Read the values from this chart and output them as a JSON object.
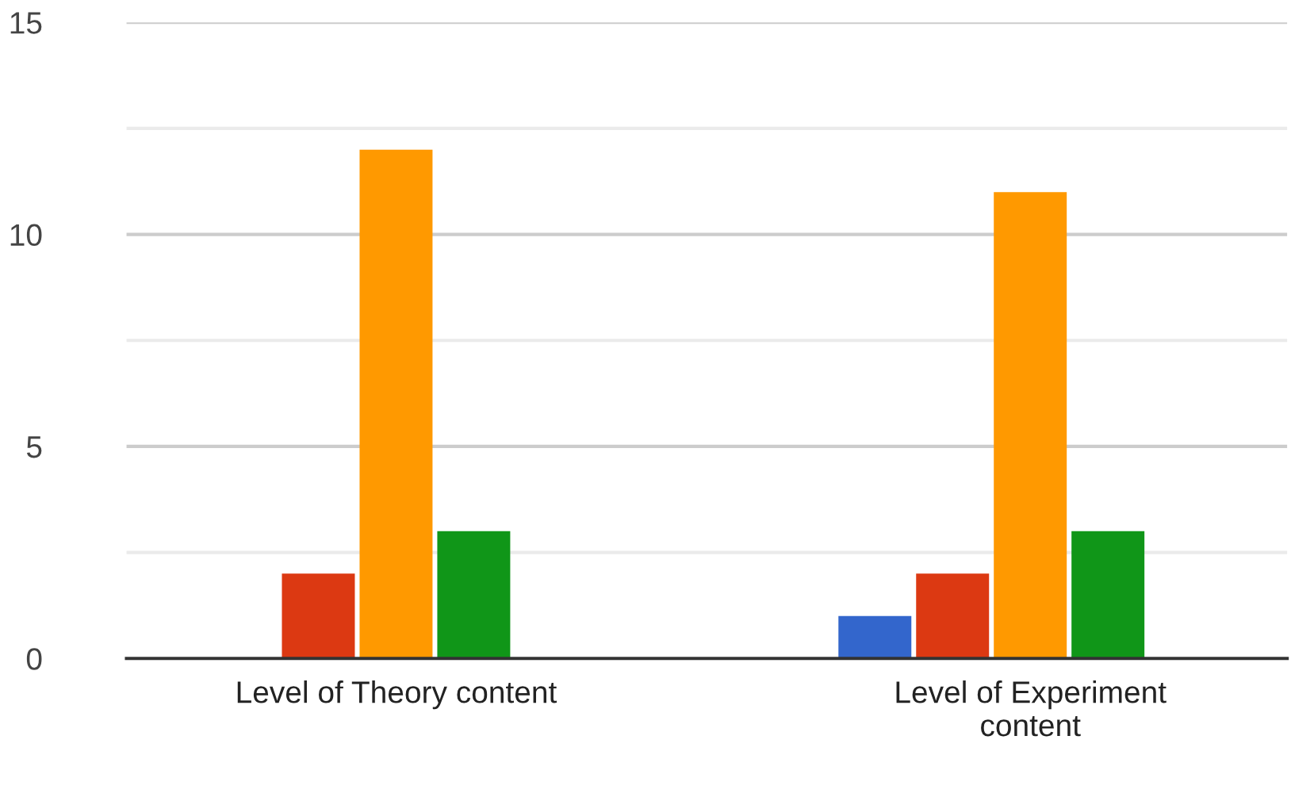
{
  "chart_data": {
    "type": "bar",
    "categories": [
      "Level of Theory content",
      "Level of Experiment content"
    ],
    "series": [
      {
        "color": "#3366cc",
        "values": [
          0,
          1
        ]
      },
      {
        "color": "#dc3912",
        "values": [
          2,
          2
        ]
      },
      {
        "color": "#ff9900",
        "values": [
          12,
          11
        ]
      },
      {
        "color": "#109618",
        "values": [
          3,
          3
        ]
      },
      {
        "color": "#990099",
        "values": [
          0,
          0
        ]
      }
    ],
    "ylim": [
      0,
      15
    ],
    "yticks": [
      0,
      {
        "value": 2.5,
        "label": null
      },
      5,
      {
        "value": 7.5,
        "label": null
      },
      10,
      {
        "value": 12.5,
        "label": null
      },
      15
    ],
    "grid": "y"
  }
}
